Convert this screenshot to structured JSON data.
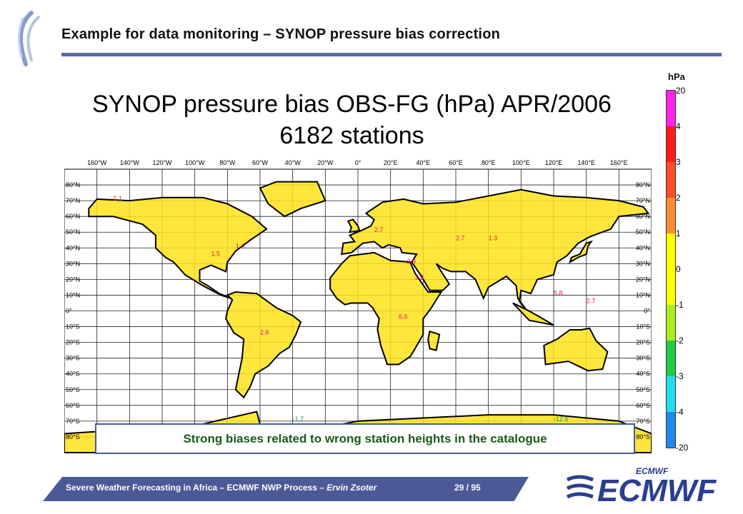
{
  "slide": {
    "title": "Example for data monitoring – SYNOP pressure bias correction",
    "footer_main": "Severe Weather Forecasting in Africa – ECMWF NWP Process – ",
    "footer_author": "Ervin Zsoter",
    "footer_page": "29 / 95",
    "brand_small": "ECMWF",
    "brand_big": "ECMWF",
    "accent_color": "#4b5a97"
  },
  "map": {
    "title": "SYNOP pressure bias OBS-FG (hPa) APR/2006",
    "subtitle": "6182 stations",
    "callout": "Strong biases related to wrong station heights in the catalogue",
    "lon_labels": [
      "160°W",
      "140°W",
      "120°W",
      "100°W",
      "80°W",
      "60°W",
      "40°W",
      "20°W",
      "0°",
      "20°E",
      "40°E",
      "60°E",
      "80°E",
      "100°E",
      "120°E",
      "140°E",
      "160°E"
    ],
    "lat_labels": [
      "80°N",
      "70°N",
      "60°N",
      "50°N",
      "40°N",
      "30°N",
      "20°N",
      "10°N",
      "0°",
      "10°S",
      "20°S",
      "30°S",
      "40°S",
      "50°S",
      "60°S",
      "70°S",
      "80°S"
    ],
    "lon_range": [
      -180,
      180
    ],
    "lat_range": [
      -90,
      90
    ],
    "grid_step_deg": 20,
    "lat_grid_step_deg": 10
  },
  "legend": {
    "unit": "hPa",
    "ticks": [
      "20",
      "4",
      "3",
      "2",
      "1",
      "0",
      "-1",
      "-2",
      "-3",
      "-4",
      "-20"
    ],
    "colors": [
      "#ff22ee",
      "#ff1a1a",
      "#ff4d2a",
      "#ff8a33",
      "#ffff00",
      "#ffff00",
      "#aaee22",
      "#22cc44",
      "#22ddee",
      "#1e88ee",
      "#1a1aee"
    ]
  },
  "sample_values": [
    {
      "lon": -75,
      "lat": 40,
      "v": "1.4"
    },
    {
      "lon": -90,
      "lat": 35,
      "v": "1.5"
    },
    {
      "lon": -60,
      "lat": -15,
      "v": "2.6"
    },
    {
      "lon": 10,
      "lat": 50,
      "v": "2.7"
    },
    {
      "lon": 30,
      "lat": 30,
      "v": "3.9"
    },
    {
      "lon": 35,
      "lat": 20,
      "v": "2.4"
    },
    {
      "lon": 25,
      "lat": -5,
      "v": "6.6"
    },
    {
      "lon": 60,
      "lat": 45,
      "v": "2.7"
    },
    {
      "lon": 80,
      "lat": 45,
      "v": "1.3"
    },
    {
      "lon": 120,
      "lat": 10,
      "v": "5.8"
    },
    {
      "lon": 140,
      "lat": 5,
      "v": "2.7"
    },
    {
      "lon": -150,
      "lat": 70,
      "v": "1.1"
    },
    {
      "lon": -40,
      "lat": -70,
      "v": "-1.7"
    },
    {
      "lon": 120,
      "lat": -70,
      "v": "-12.6"
    }
  ]
}
